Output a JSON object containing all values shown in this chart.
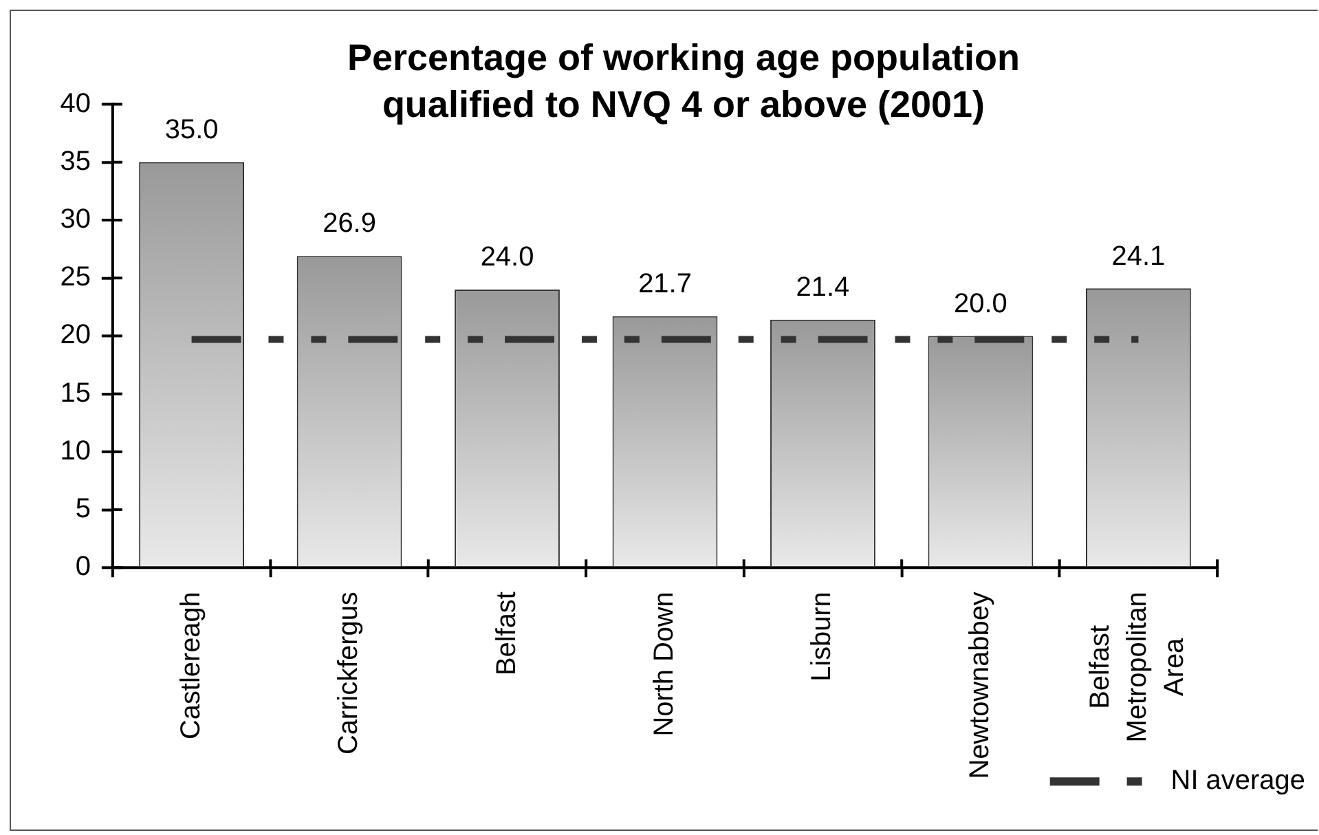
{
  "chart_data": {
    "type": "bar",
    "title": "Percentage of working age population qualified to NVQ 4 or above (2001)",
    "categories": [
      "Castlereagh",
      "Carrickfergus",
      "Belfast",
      "North Down",
      "Lisburn",
      "Newtownabbey",
      "Belfast Metropolitan Area"
    ],
    "series": [
      {
        "color": "#999999",
        "values": [
          35.0,
          26.9,
          24.0,
          21.7,
          21.4,
          20.0,
          24.1
        ],
        "value_labels": [
          "35.0",
          "26.9",
          "24.0",
          "21.7",
          "21.4",
          "20.0",
          "24.1"
        ]
      },
      {
        "type": "line",
        "name": "NI average",
        "color": "#333333",
        "values": [
          19.7,
          19.7,
          19.7,
          19.7,
          19.7,
          19.7,
          19.7
        ]
      }
    ],
    "ylim": [
      0,
      40
    ],
    "yticks": [
      0,
      5,
      10,
      15,
      20,
      25,
      30,
      35,
      40
    ],
    "legend": "bottom right",
    "marker": "none",
    "line_style": "dashed"
  }
}
